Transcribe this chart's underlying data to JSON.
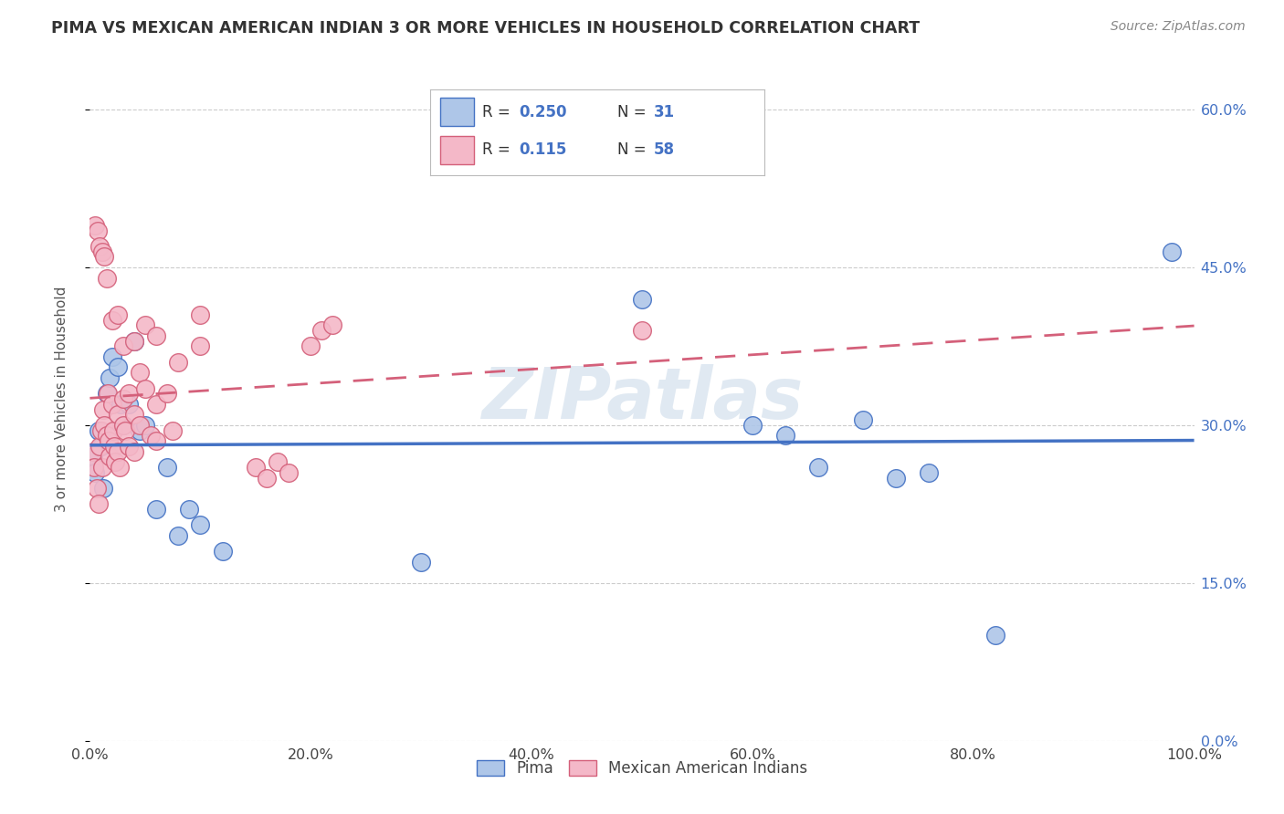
{
  "title": "PIMA VS MEXICAN AMERICAN INDIAN 3 OR MORE VEHICLES IN HOUSEHOLD CORRELATION CHART",
  "source": "Source: ZipAtlas.com",
  "ylabel": "3 or more Vehicles in Household",
  "pima_R": 0.25,
  "pima_N": 31,
  "mexican_R": 0.115,
  "mexican_N": 58,
  "pima_color": "#aec6e8",
  "mexican_color": "#f4b8c8",
  "pima_line_color": "#4472c4",
  "mexican_line_color": "#d4607a",
  "background_color": "#ffffff",
  "grid_color": "#cccccc",
  "pima_points": [
    [
      0.3,
      27.0
    ],
    [
      0.5,
      25.5
    ],
    [
      0.8,
      29.5
    ],
    [
      1.0,
      28.0
    ],
    [
      1.2,
      24.0
    ],
    [
      1.5,
      33.0
    ],
    [
      1.8,
      34.5
    ],
    [
      2.0,
      36.5
    ],
    [
      2.5,
      35.5
    ],
    [
      2.8,
      32.0
    ],
    [
      3.0,
      30.0
    ],
    [
      3.5,
      32.0
    ],
    [
      4.0,
      38.0
    ],
    [
      4.5,
      29.5
    ],
    [
      5.0,
      30.0
    ],
    [
      6.0,
      22.0
    ],
    [
      7.0,
      26.0
    ],
    [
      8.0,
      19.5
    ],
    [
      9.0,
      22.0
    ],
    [
      10.0,
      20.5
    ],
    [
      12.0,
      18.0
    ],
    [
      30.0,
      17.0
    ],
    [
      50.0,
      42.0
    ],
    [
      60.0,
      30.0
    ],
    [
      63.0,
      29.0
    ],
    [
      66.0,
      26.0
    ],
    [
      70.0,
      30.5
    ],
    [
      73.0,
      25.0
    ],
    [
      76.0,
      25.5
    ],
    [
      82.0,
      10.0
    ],
    [
      98.0,
      46.5
    ]
  ],
  "mexican_points": [
    [
      0.3,
      27.5
    ],
    [
      0.4,
      26.0
    ],
    [
      0.6,
      24.0
    ],
    [
      0.8,
      22.5
    ],
    [
      0.9,
      28.0
    ],
    [
      1.0,
      29.5
    ],
    [
      1.1,
      26.0
    ],
    [
      1.2,
      31.5
    ],
    [
      1.3,
      30.0
    ],
    [
      1.5,
      29.0
    ],
    [
      1.6,
      33.0
    ],
    [
      1.7,
      28.5
    ],
    [
      1.8,
      27.0
    ],
    [
      2.0,
      32.0
    ],
    [
      2.1,
      29.5
    ],
    [
      2.2,
      28.0
    ],
    [
      2.3,
      26.5
    ],
    [
      2.5,
      31.0
    ],
    [
      2.5,
      27.5
    ],
    [
      2.7,
      26.0
    ],
    [
      3.0,
      32.5
    ],
    [
      3.0,
      30.0
    ],
    [
      3.2,
      29.5
    ],
    [
      3.5,
      33.0
    ],
    [
      3.5,
      28.0
    ],
    [
      4.0,
      31.0
    ],
    [
      4.0,
      27.5
    ],
    [
      4.5,
      35.0
    ],
    [
      4.5,
      30.0
    ],
    [
      5.0,
      33.5
    ],
    [
      5.5,
      29.0
    ],
    [
      6.0,
      32.0
    ],
    [
      6.0,
      28.5
    ],
    [
      7.0,
      33.0
    ],
    [
      7.5,
      29.5
    ],
    [
      0.5,
      49.0
    ],
    [
      0.7,
      48.5
    ],
    [
      0.9,
      47.0
    ],
    [
      1.1,
      46.5
    ],
    [
      1.3,
      46.0
    ],
    [
      1.5,
      44.0
    ],
    [
      2.0,
      40.0
    ],
    [
      2.5,
      40.5
    ],
    [
      3.0,
      37.5
    ],
    [
      4.0,
      38.0
    ],
    [
      5.0,
      39.5
    ],
    [
      6.0,
      38.5
    ],
    [
      8.0,
      36.0
    ],
    [
      10.0,
      40.5
    ],
    [
      10.0,
      37.5
    ],
    [
      15.0,
      26.0
    ],
    [
      16.0,
      25.0
    ],
    [
      17.0,
      26.5
    ],
    [
      18.0,
      25.5
    ],
    [
      20.0,
      37.5
    ],
    [
      21.0,
      39.0
    ],
    [
      22.0,
      39.5
    ],
    [
      50.0,
      39.0
    ]
  ],
  "watermark": "ZIPatlas",
  "legend_label_pima": "Pima",
  "legend_label_mexican": "Mexican American Indians",
  "xlim": [
    0,
    100
  ],
  "ylim": [
    0,
    65
  ],
  "xticks": [
    0,
    20,
    40,
    60,
    80,
    100
  ],
  "xtick_labels": [
    "0.0%",
    "20.0%",
    "40.0%",
    "60.0%",
    "80.0%",
    "100.0%"
  ],
  "yticks": [
    0,
    15,
    30,
    45,
    60
  ],
  "ytick_labels": [
    "0.0%",
    "15.0%",
    "30.0%",
    "45.0%",
    "60.0%"
  ]
}
